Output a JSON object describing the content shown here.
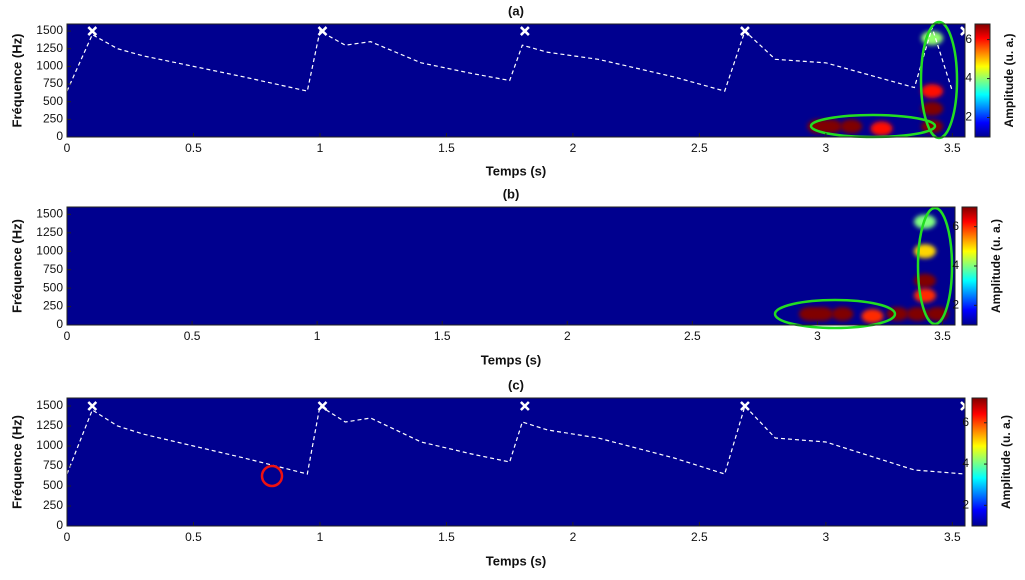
{
  "chart_data": [
    {
      "type": "spectrogram",
      "title": "(a)",
      "xlabel": "Temps (s)",
      "ylabel": "Fréquence (Hz)",
      "colorbar_label": "Amplitude (u. a.)",
      "xlim": [
        0,
        3.55
      ],
      "xticks": [
        0,
        0.5,
        1,
        1.5,
        2,
        2.5,
        3,
        3.5
      ],
      "ylim": [
        0,
        1600
      ],
      "yticks": [
        0,
        250,
        500,
        750,
        1000,
        1250,
        1500
      ],
      "clim": [
        1,
        6.8
      ],
      "cticks": [
        2,
        4,
        6
      ],
      "background": "#00008f",
      "envelope": {
        "color": "#ffffff",
        "x": [
          0,
          0.1,
          0.2,
          0.3,
          0.5,
          0.7,
          0.95,
          1.0,
          1.1,
          1.2,
          1.4,
          1.6,
          1.75,
          1.8,
          1.9,
          2.1,
          2.4,
          2.6,
          2.68,
          2.8,
          3.0,
          3.2,
          3.35,
          3.42,
          3.5
        ],
        "y": [
          650,
          1450,
          1250,
          1150,
          1000,
          850,
          650,
          1500,
          1300,
          1350,
          1050,
          900,
          800,
          1300,
          1200,
          1100,
          850,
          650,
          1500,
          1100,
          1050,
          850,
          700,
          1550,
          650
        ]
      },
      "peaks": {
        "color": "#ffffff",
        "x": [
          0.1,
          1.01,
          1.81,
          2.68,
          3.55
        ],
        "y": [
          1500,
          1500,
          1500,
          1500,
          1500
        ]
      },
      "hotspots": {
        "x": [
          2.97,
          3.02,
          3.1,
          3.22,
          3.42,
          3.42,
          3.42,
          3.42
        ],
        "y": [
          150,
          150,
          150,
          120,
          150,
          400,
          650,
          1400
        ],
        "values": [
          7,
          7,
          7,
          6,
          7,
          7,
          6,
          4
        ]
      }
    },
    {
      "type": "spectrogram",
      "title": "(b)",
      "xlabel": "Temps (s)",
      "ylabel": "Fréquence (Hz)",
      "colorbar_label": "Amplitude (u. a.)",
      "xlim": [
        0,
        3.55
      ],
      "xticks": [
        0,
        0.5,
        1,
        1.5,
        2,
        2.5,
        3,
        3.5
      ],
      "ylim": [
        0,
        1600
      ],
      "yticks": [
        0,
        250,
        500,
        750,
        1000,
        1250,
        1500
      ],
      "clim": [
        1,
        7
      ],
      "cticks": [
        2,
        4,
        6
      ],
      "background": "#00008f",
      "hotspots": {
        "x": [
          2.97,
          3.02,
          3.1,
          3.22,
          3.32,
          3.4,
          3.48,
          3.43,
          3.43,
          3.43,
          3.43
        ],
        "y": [
          150,
          150,
          150,
          120,
          150,
          150,
          150,
          600,
          400,
          1000,
          1400
        ],
        "values": [
          7,
          7,
          7,
          6,
          7,
          7,
          7,
          7,
          6,
          5,
          4
        ]
      }
    },
    {
      "type": "spectrogram",
      "title": "(c)",
      "xlabel": "Temps (s)",
      "ylabel": "Fréquence (Hz)",
      "colorbar_label": "Amplitude (u. a.)",
      "xlim": [
        0,
        3.55
      ],
      "xticks": [
        0,
        0.5,
        1,
        1.5,
        2,
        2.5,
        3,
        3.5
      ],
      "ylim": [
        0,
        1600
      ],
      "yticks": [
        0,
        250,
        500,
        750,
        1000,
        1250,
        1500
      ],
      "clim": [
        1,
        7.2
      ],
      "cticks": [
        2,
        4,
        6
      ],
      "background": "#00008f",
      "envelope": {
        "color": "#ffffff",
        "x": [
          0,
          0.1,
          0.2,
          0.3,
          0.5,
          0.7,
          0.95,
          1.0,
          1.1,
          1.2,
          1.4,
          1.6,
          1.75,
          1.8,
          1.9,
          2.1,
          2.4,
          2.6,
          2.68,
          2.8,
          3.0,
          3.2,
          3.35,
          3.55
        ],
        "y": [
          650,
          1450,
          1250,
          1150,
          1000,
          850,
          650,
          1500,
          1300,
          1350,
          1050,
          900,
          800,
          1300,
          1200,
          1100,
          850,
          650,
          1500,
          1100,
          1050,
          850,
          700,
          650
        ]
      },
      "peaks": {
        "color": "#ffffff",
        "x": [
          0.1,
          1.01,
          1.81,
          2.68,
          3.55
        ],
        "y": [
          1500,
          1500,
          1500,
          1500,
          1500
        ]
      }
    }
  ]
}
